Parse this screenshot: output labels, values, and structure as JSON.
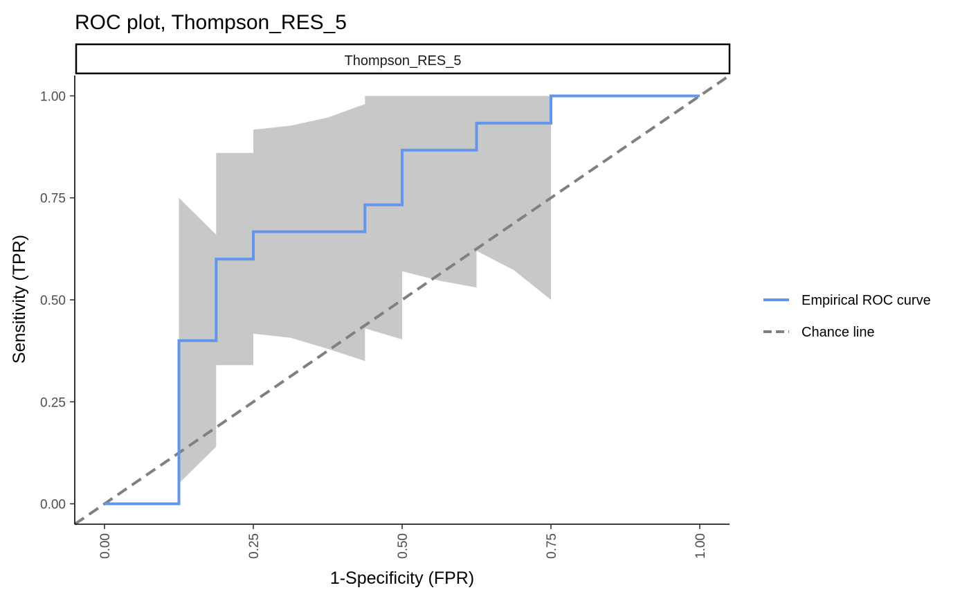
{
  "chart_data": {
    "type": "line",
    "title": "ROC plot, Thompson_RES_5",
    "facet_label": "Thompson_RES_5",
    "xlabel": "1-Specificity (FPR)",
    "ylabel": "Sensitivity (TPR)",
    "xlim": [
      -0.05,
      1.05
    ],
    "ylim": [
      -0.05,
      1.05
    ],
    "x_ticks": [
      0,
      0.25,
      0.5,
      0.75,
      1
    ],
    "x_tick_labels": [
      "0.00",
      "0.25",
      "0.50",
      "0.75",
      "1.00"
    ],
    "y_ticks": [
      0,
      0.25,
      0.5,
      0.75,
      1
    ],
    "y_tick_labels": [
      "0.00",
      "0.25",
      "0.50",
      "0.75",
      "1.00"
    ],
    "grid": false,
    "legend_position": "right",
    "series": [
      {
        "name": "Empirical ROC curve",
        "style": "solid",
        "color": "#6495ED",
        "points": [
          [
            0,
            0
          ],
          [
            0.125,
            0
          ],
          [
            0.125,
            0.4
          ],
          [
            0.1875,
            0.4
          ],
          [
            0.1875,
            0.6
          ],
          [
            0.25,
            0.6
          ],
          [
            0.25,
            0.667
          ],
          [
            0.4375,
            0.667
          ],
          [
            0.4375,
            0.733
          ],
          [
            0.5,
            0.733
          ],
          [
            0.5,
            0.867
          ],
          [
            0.625,
            0.867
          ],
          [
            0.625,
            0.933
          ],
          [
            0.75,
            0.933
          ],
          [
            0.75,
            1
          ],
          [
            1,
            1
          ]
        ]
      },
      {
        "name": "Chance line",
        "style": "dashed",
        "color": "#808080",
        "points": [
          [
            -0.05,
            -0.05
          ],
          [
            1.05,
            1.05
          ]
        ]
      }
    ],
    "confidence_band": {
      "color": "#C8C8C8",
      "upper": [
        [
          0.125,
          0.75
        ],
        [
          0.1875,
          0.66
        ],
        [
          0.1875,
          0.86
        ],
        [
          0.25,
          0.86
        ],
        [
          0.25,
          0.917
        ],
        [
          0.3125,
          0.927
        ],
        [
          0.375,
          0.947
        ],
        [
          0.4375,
          0.98
        ],
        [
          0.4375,
          1
        ],
        [
          0.75,
          1
        ]
      ],
      "lower": [
        [
          0.75,
          0.5
        ],
        [
          0.6875,
          0.573
        ],
        [
          0.625,
          0.62
        ],
        [
          0.625,
          0.53
        ],
        [
          0.5625,
          0.547
        ],
        [
          0.5,
          0.57
        ],
        [
          0.5,
          0.403
        ],
        [
          0.4375,
          0.43
        ],
        [
          0.4375,
          0.35
        ],
        [
          0.375,
          0.38
        ],
        [
          0.3125,
          0.407
        ],
        [
          0.25,
          0.417
        ],
        [
          0.25,
          0.34
        ],
        [
          0.1875,
          0.34
        ],
        [
          0.1875,
          0.14
        ],
        [
          0.125,
          0.05
        ]
      ]
    }
  }
}
